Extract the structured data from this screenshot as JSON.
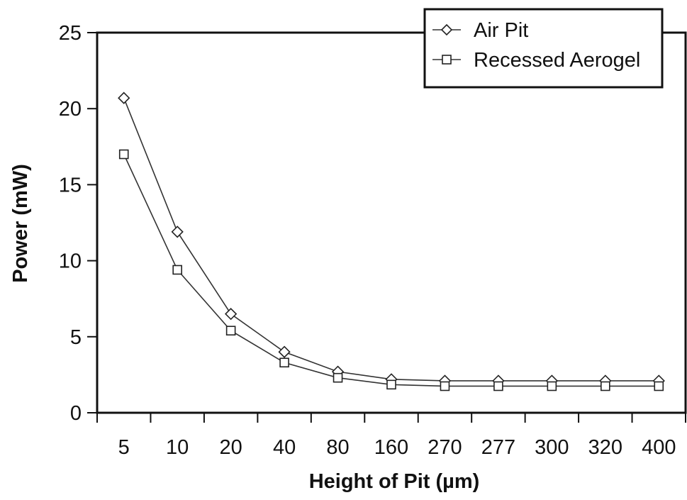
{
  "chart_data": {
    "type": "line",
    "title": "",
    "xlabel": "Height of Pit (µm)",
    "ylabel": "Power (mW)",
    "categories": [
      "5",
      "10",
      "20",
      "40",
      "80",
      "160",
      "270",
      "277",
      "300",
      "320",
      "400"
    ],
    "ylim": [
      0,
      25
    ],
    "yticks": [
      "0",
      "5",
      "10",
      "15",
      "20",
      "25"
    ],
    "grid": false,
    "legend_position": "top-right",
    "series": [
      {
        "name": "Air Pit",
        "marker": "diamond",
        "values": [
          20.7,
          11.9,
          6.5,
          4.0,
          2.7,
          2.2,
          2.1,
          2.1,
          2.1,
          2.1,
          2.1
        ]
      },
      {
        "name": "Recessed Aerogel",
        "marker": "square",
        "values": [
          17.0,
          9.4,
          5.4,
          3.3,
          2.3,
          1.85,
          1.75,
          1.75,
          1.75,
          1.75,
          1.75
        ]
      }
    ]
  }
}
